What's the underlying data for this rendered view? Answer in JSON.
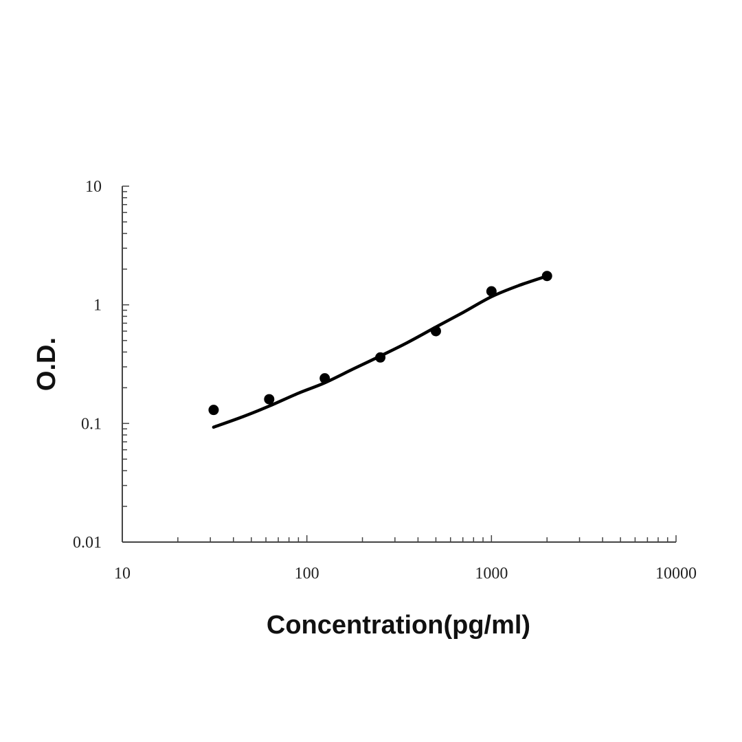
{
  "chart_data": {
    "type": "scatter",
    "title": "",
    "xlabel": "Concentration(pg/ml)",
    "ylabel": "O.D.",
    "x_scale": "log",
    "y_scale": "log",
    "xlim": [
      10,
      10000
    ],
    "ylim": [
      0.01,
      10
    ],
    "x_ticks": [
      "10",
      "100",
      "1000",
      "10000"
    ],
    "y_ticks": [
      "0.01",
      "0.1",
      "1",
      "10"
    ],
    "grid": false,
    "series": [
      {
        "kind": "points",
        "x": [
          31.25,
          62.5,
          125,
          250,
          500,
          1000,
          2000
        ],
        "y": [
          0.13,
          0.16,
          0.24,
          0.36,
          0.6,
          1.3,
          1.75
        ]
      },
      {
        "kind": "fitted-curve",
        "x": [
          31.25,
          45,
          62.5,
          90,
          125,
          180,
          250,
          350,
          500,
          700,
          1000,
          1400,
          2000
        ],
        "y": [
          0.093,
          0.114,
          0.14,
          0.18,
          0.22,
          0.29,
          0.37,
          0.48,
          0.65,
          0.86,
          1.17,
          1.45,
          1.75
        ]
      }
    ],
    "colors": {
      "points": "#000000",
      "curve": "#000000",
      "axis": "#444444"
    }
  }
}
